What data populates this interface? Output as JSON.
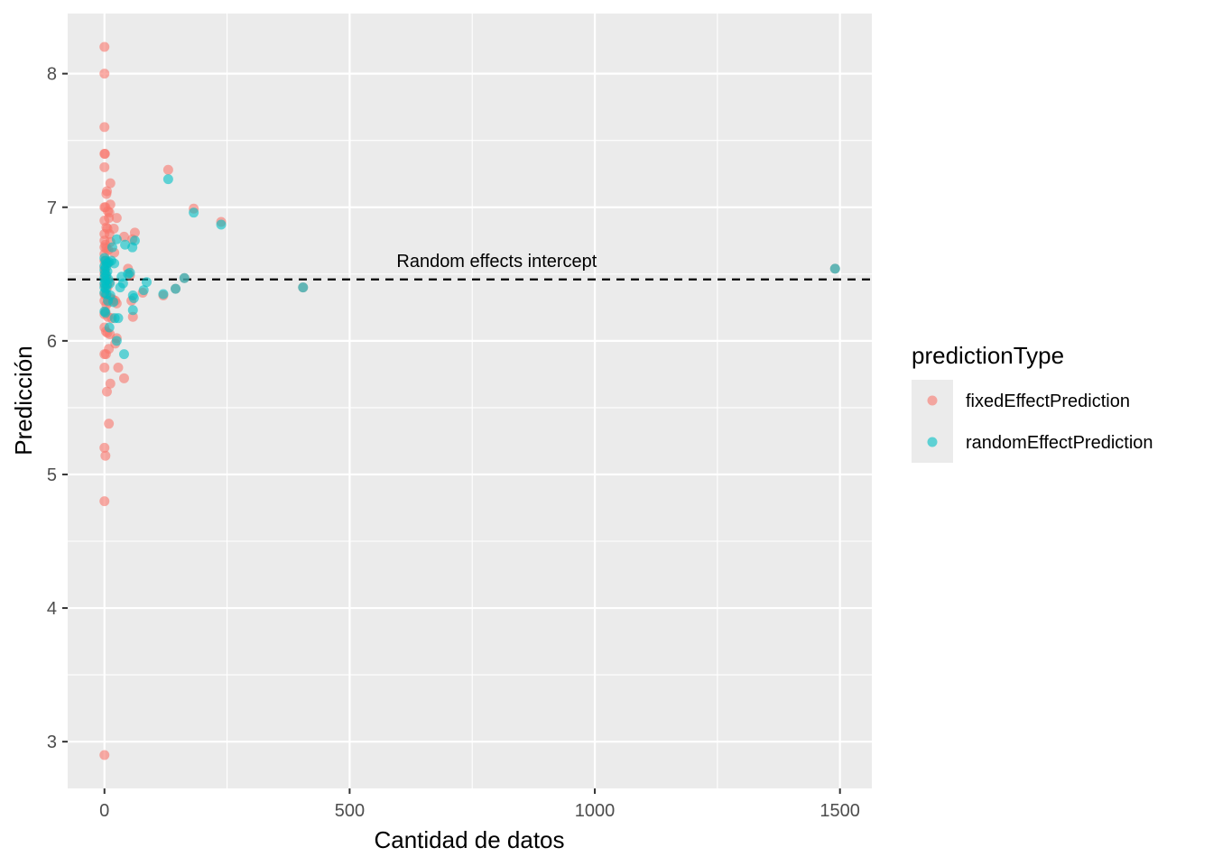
{
  "chart_data": {
    "type": "scatter",
    "xlabel": "Cantidad de datos",
    "ylabel": "Predicción",
    "xlim": [
      -75,
      1565
    ],
    "ylim": [
      2.65,
      8.45
    ],
    "x_ticks": [
      0,
      500,
      1000,
      1500
    ],
    "x_tick_labels": [
      "0",
      "500",
      "1000",
      "1500"
    ],
    "y_ticks": [
      3,
      4,
      5,
      6,
      7,
      8
    ],
    "y_tick_labels": [
      "3",
      "4",
      "5",
      "6",
      "7",
      "8"
    ],
    "grid": true,
    "reference_line": {
      "y": 6.46,
      "style": "dashed",
      "color": "#000000"
    },
    "annotation": {
      "text": "Random effects intercept",
      "x": 800,
      "y": 6.6
    },
    "legend": {
      "title": "predictionType",
      "position": "right",
      "entries": [
        "fixedEffectPrediction",
        "randomEffectPrediction"
      ]
    },
    "series": [
      {
        "name": "fixedEffectPrediction",
        "color": "#F8766D",
        "points": [
          [
            0,
            8.2
          ],
          [
            0,
            8.0
          ],
          [
            0,
            7.6
          ],
          [
            0,
            7.4
          ],
          [
            1,
            7.4
          ],
          [
            0,
            7.3
          ],
          [
            4,
            7.1
          ],
          [
            5,
            7.12
          ],
          [
            0,
            7.0
          ],
          [
            2,
            7.0
          ],
          [
            12,
            7.18
          ],
          [
            12,
            7.02
          ],
          [
            7,
            6.97
          ],
          [
            10,
            6.96
          ],
          [
            0,
            6.9
          ],
          [
            9,
            6.92
          ],
          [
            25,
            6.92
          ],
          [
            4,
            6.85
          ],
          [
            6,
            6.84
          ],
          [
            19,
            6.84
          ],
          [
            0,
            6.8
          ],
          [
            10,
            6.8
          ],
          [
            0,
            6.75
          ],
          [
            12,
            6.74
          ],
          [
            2,
            6.72
          ],
          [
            0,
            6.7
          ],
          [
            4,
            6.69
          ],
          [
            8,
            6.68
          ],
          [
            20,
            6.66
          ],
          [
            0,
            6.65
          ],
          [
            0,
            6.6
          ],
          [
            3,
            6.6
          ],
          [
            7,
            6.58
          ],
          [
            0,
            6.55
          ],
          [
            1,
            6.52
          ],
          [
            0,
            6.5
          ],
          [
            2,
            6.48
          ],
          [
            5,
            6.46
          ],
          [
            10,
            6.44
          ],
          [
            0,
            6.42
          ],
          [
            6,
            6.4
          ],
          [
            0,
            6.35
          ],
          [
            3,
            6.34
          ],
          [
            12,
            6.32
          ],
          [
            17,
            6.31
          ],
          [
            0,
            6.3
          ],
          [
            8,
            6.29
          ],
          [
            22,
            6.3
          ],
          [
            25,
            6.28
          ],
          [
            4,
            6.27
          ],
          [
            0,
            6.2
          ],
          [
            2,
            6.22
          ],
          [
            7,
            6.18
          ],
          [
            15,
            6.17
          ],
          [
            0,
            6.1
          ],
          [
            3,
            6.07
          ],
          [
            6,
            6.06
          ],
          [
            11,
            6.05
          ],
          [
            25,
            6.02
          ],
          [
            22,
            5.98
          ],
          [
            0,
            5.9
          ],
          [
            3,
            5.9
          ],
          [
            9,
            5.94
          ],
          [
            0,
            5.8
          ],
          [
            28,
            5.8
          ],
          [
            12,
            5.68
          ],
          [
            40,
            5.72
          ],
          [
            5,
            5.62
          ],
          [
            9,
            5.38
          ],
          [
            0,
            5.2
          ],
          [
            2,
            5.14
          ],
          [
            0,
            4.8
          ],
          [
            0,
            2.9
          ],
          [
            40,
            6.78
          ],
          [
            48,
            6.54
          ],
          [
            52,
            6.49
          ],
          [
            57,
            6.76
          ],
          [
            62,
            6.81
          ],
          [
            55,
            6.3
          ],
          [
            58,
            6.18
          ],
          [
            78,
            6.36
          ],
          [
            120,
            6.34
          ],
          [
            130,
            7.28
          ],
          [
            182,
            6.99
          ],
          [
            238,
            6.89
          ],
          [
            145,
            6.39
          ],
          [
            163,
            6.47
          ],
          [
            405,
            6.4
          ],
          [
            1490,
            6.54
          ]
        ]
      },
      {
        "name": "randomEffectPrediction",
        "color": "#00BFC4",
        "points": [
          [
            0,
            6.62
          ],
          [
            2,
            6.6
          ],
          [
            5,
            6.58
          ],
          [
            9,
            6.59
          ],
          [
            14,
            6.6
          ],
          [
            20,
            6.58
          ],
          [
            0,
            6.56
          ],
          [
            3,
            6.55
          ],
          [
            0,
            6.53
          ],
          [
            6,
            6.52
          ],
          [
            1,
            6.5
          ],
          [
            4,
            6.49
          ],
          [
            0,
            6.47
          ],
          [
            8,
            6.46
          ],
          [
            2,
            6.45
          ],
          [
            0,
            6.43
          ],
          [
            5,
            6.42
          ],
          [
            11,
            6.43
          ],
          [
            0,
            6.4
          ],
          [
            3,
            6.39
          ],
          [
            0,
            6.36
          ],
          [
            4,
            6.35
          ],
          [
            12,
            6.34
          ],
          [
            7,
            6.3
          ],
          [
            18,
            6.29
          ],
          [
            0,
            6.22
          ],
          [
            2,
            6.21
          ],
          [
            21,
            6.17
          ],
          [
            28,
            6.17
          ],
          [
            10,
            6.1
          ],
          [
            25,
            6.0
          ],
          [
            40,
            5.9
          ],
          [
            16,
            6.7
          ],
          [
            25,
            6.76
          ],
          [
            42,
            6.72
          ],
          [
            57,
            6.7
          ],
          [
            62,
            6.75
          ],
          [
            35,
            6.48
          ],
          [
            48,
            6.5
          ],
          [
            52,
            6.51
          ],
          [
            32,
            6.4
          ],
          [
            38,
            6.43
          ],
          [
            58,
            6.34
          ],
          [
            60,
            6.32
          ],
          [
            58,
            6.23
          ],
          [
            80,
            6.38
          ],
          [
            86,
            6.44
          ],
          [
            120,
            6.35
          ],
          [
            130,
            7.21
          ],
          [
            182,
            6.96
          ],
          [
            238,
            6.87
          ],
          [
            145,
            6.39
          ],
          [
            163,
            6.47
          ],
          [
            405,
            6.4
          ],
          [
            1490,
            6.54
          ]
        ]
      }
    ]
  }
}
